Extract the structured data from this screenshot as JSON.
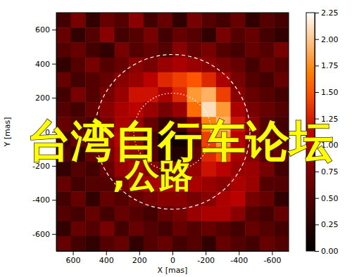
{
  "chart_data": {
    "type": "heatmap",
    "x_label": "X [mas]",
    "y_label": "Y [mas]",
    "xlim": [
      700,
      -700
    ],
    "xticks": [
      600,
      400,
      200,
      0,
      -200,
      -400,
      -600
    ],
    "ylim": [
      -700,
      700
    ],
    "yticks": [
      -600,
      -400,
      -200,
      0,
      200,
      400,
      600
    ],
    "annotations": [
      "台湾自行车论坛",
      ",公路"
    ],
    "z": [
      [
        0.4,
        0.7,
        0.3,
        0.6,
        0.5,
        0.8,
        0.4,
        0.6,
        0.3,
        0.7,
        0.5,
        0.4,
        0.6,
        0.3,
        0.5,
        0.4
      ],
      [
        0.6,
        0.3,
        0.5,
        0.8,
        0.4,
        0.5,
        0.7,
        0.4,
        0.6,
        0.5,
        0.3,
        0.7,
        0.5,
        0.6,
        0.4,
        0.3
      ],
      [
        0.5,
        0.6,
        0.4,
        0.3,
        0.7,
        0.5,
        0.6,
        0.5,
        0.8,
        0.6,
        0.7,
        0.5,
        0.4,
        0.6,
        0.5,
        0.7
      ],
      [
        0.3,
        0.5,
        0.7,
        0.5,
        0.6,
        0.8,
        0.7,
        0.9,
        1.0,
        0.9,
        0.8,
        0.7,
        0.6,
        0.4,
        0.6,
        0.5
      ],
      [
        0.6,
        0.4,
        0.5,
        0.6,
        0.8,
        0.9,
        1.1,
        1.3,
        1.4,
        1.5,
        1.3,
        1.0,
        0.7,
        0.5,
        0.4,
        0.6
      ],
      [
        0.4,
        0.7,
        0.5,
        0.7,
        0.9,
        1.2,
        1.2,
        1.0,
        1.3,
        1.8,
        1.9,
        1.4,
        0.8,
        0.6,
        0.5,
        0.4
      ],
      [
        0.5,
        0.4,
        0.6,
        0.8,
        1.0,
        1.1,
        0.9,
        0.7,
        0.9,
        1.6,
        2.1,
        1.8,
        1.0,
        0.7,
        0.6,
        0.5
      ],
      [
        0.6,
        0.5,
        0.4,
        0.7,
        1.0,
        0.9,
        0.6,
        0.3,
        0.4,
        0.8,
        1.7,
        1.9,
        1.2,
        0.8,
        0.5,
        0.4
      ],
      [
        0.4,
        0.6,
        0.5,
        0.8,
        1.1,
        0.8,
        0.4,
        0.1,
        0.1,
        0.5,
        1.4,
        1.8,
        1.1,
        0.7,
        0.6,
        0.5
      ],
      [
        0.5,
        0.3,
        0.6,
        0.7,
        1.0,
        0.9,
        0.5,
        0.2,
        0.2,
        0.6,
        1.3,
        1.5,
        1.0,
        0.8,
        0.5,
        0.6
      ],
      [
        0.3,
        0.5,
        0.4,
        0.6,
        0.9,
        1.0,
        0.8,
        0.6,
        0.7,
        0.9,
        1.2,
        1.1,
        0.9,
        0.9,
        0.7,
        0.4
      ],
      [
        0.6,
        0.4,
        0.5,
        0.5,
        0.7,
        0.9,
        1.0,
        1.0,
        1.1,
        1.0,
        0.9,
        0.8,
        1.0,
        0.9,
        0.5,
        0.5
      ],
      [
        0.4,
        0.6,
        0.3,
        0.6,
        0.5,
        0.6,
        0.7,
        0.8,
        0.8,
        0.7,
        0.8,
        1.0,
        1.1,
        0.7,
        0.6,
        0.3
      ],
      [
        0.5,
        0.4,
        0.6,
        0.4,
        0.6,
        0.5,
        0.4,
        0.6,
        0.7,
        0.9,
        1.0,
        1.0,
        0.8,
        0.5,
        0.4,
        0.6
      ],
      [
        0.3,
        0.6,
        0.5,
        0.7,
        0.4,
        0.6,
        0.5,
        0.4,
        0.6,
        0.5,
        0.6,
        0.5,
        0.4,
        0.6,
        0.5,
        0.4
      ],
      [
        0.6,
        0.4,
        0.3,
        0.5,
        0.6,
        0.3,
        0.5,
        0.6,
        0.4,
        0.5,
        0.3,
        0.6,
        0.5,
        0.4,
        0.6,
        0.5
      ]
    ],
    "colorbar": {
      "range": [
        0,
        2.25
      ],
      "ticks": [
        {
          "value": 0,
          "label": "0.00"
        },
        {
          "value": 0.25,
          "label": "0.25"
        },
        {
          "value": 0.5,
          "label": "0.50"
        },
        {
          "value": 0.75,
          "label": "0.75"
        },
        {
          "value": 1,
          "label": "1.00"
        },
        {
          "value": 1.25,
          "label": "1.25"
        },
        {
          "value": 1.5,
          "label": "1.50"
        },
        {
          "value": 1.75,
          "label": "1.75"
        },
        {
          "value": 2,
          "label": "2.00"
        },
        {
          "value": 2.25,
          "label": "2.25"
        }
      ]
    }
  }
}
